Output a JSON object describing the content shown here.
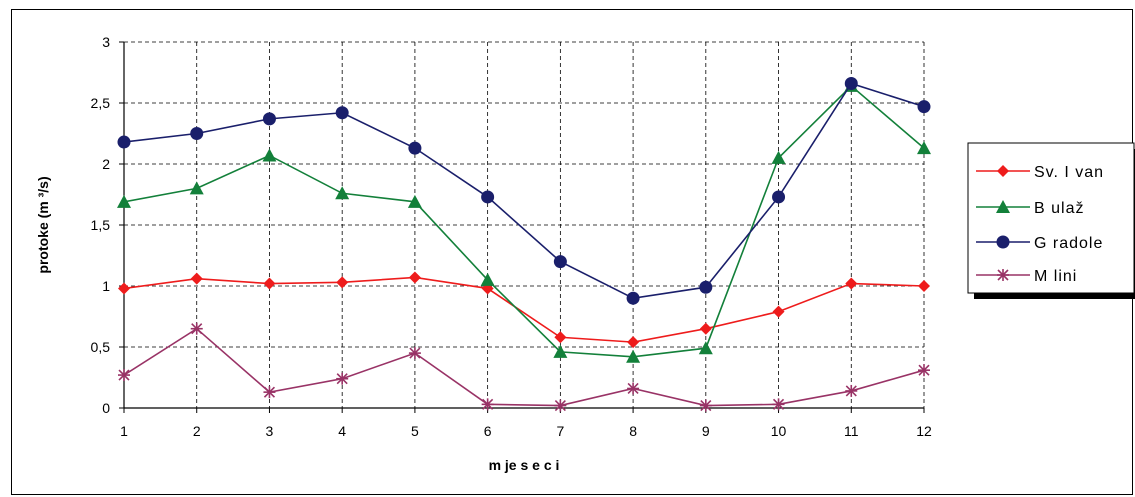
{
  "chart_data": {
    "type": "line",
    "categories": [
      "1",
      "2",
      "3",
      "4",
      "5",
      "6",
      "7",
      "8",
      "9",
      "10",
      "11",
      "12"
    ],
    "y_ticks": [
      "0",
      "0,5",
      "1",
      "1,5",
      "2",
      "2,5",
      "3"
    ],
    "ylim": [
      0,
      3
    ],
    "xlabel": "m je s e c i",
    "ylabel": "protoke (m ³/s)",
    "grid": true,
    "legend_position": "right",
    "series": [
      {
        "name": "Sv. I van",
        "color": "#ee1c1c",
        "marker": "diamond",
        "values": [
          0.98,
          1.06,
          1.02,
          1.03,
          1.07,
          0.98,
          0.58,
          0.54,
          0.65,
          0.79,
          1.02,
          1.0
        ]
      },
      {
        "name": "B ulaž",
        "color": "#13803a",
        "marker": "triangle",
        "values": [
          1.69,
          1.8,
          2.07,
          1.76,
          1.69,
          1.05,
          0.46,
          0.42,
          0.49,
          2.05,
          2.64,
          2.13
        ]
      },
      {
        "name": "G radole",
        "color": "#1a1f6b",
        "marker": "circle",
        "values": [
          2.18,
          2.25,
          2.37,
          2.42,
          2.13,
          1.73,
          1.2,
          0.9,
          0.99,
          1.73,
          2.66,
          2.47
        ]
      },
      {
        "name": "M lini",
        "color": "#993366",
        "marker": "star",
        "values": [
          0.27,
          0.65,
          0.13,
          0.24,
          0.45,
          0.03,
          0.02,
          0.16,
          0.02,
          0.03,
          0.14,
          0.31
        ]
      }
    ]
  }
}
